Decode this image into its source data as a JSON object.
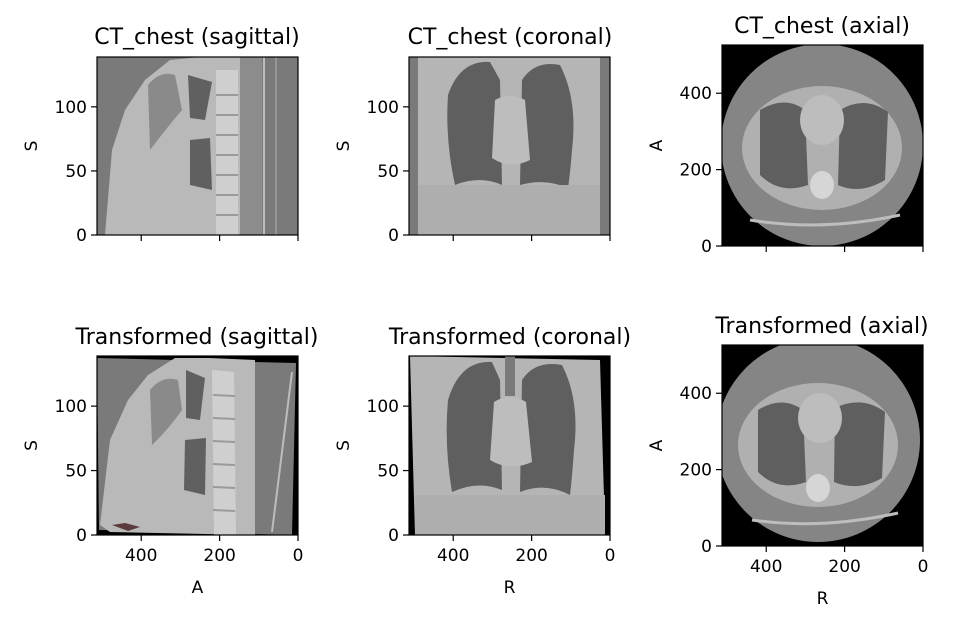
{
  "panels": [
    {
      "id": "p1",
      "title": "CT_chest (sagittal)",
      "ylabel": "S",
      "xlabel": "",
      "yticks": [
        "0",
        "50",
        "100"
      ],
      "xticks": [
        "",
        "",
        ""
      ]
    },
    {
      "id": "p2",
      "title": "CT_chest (coronal)",
      "ylabel": "S",
      "xlabel": "",
      "yticks": [
        "0",
        "50",
        "100"
      ],
      "xticks": [
        "",
        "",
        ""
      ]
    },
    {
      "id": "p3",
      "title": "CT_chest (axial)",
      "ylabel": "A",
      "xlabel": "",
      "yticks": [
        "0",
        "200",
        "400"
      ],
      "xticks": [
        "",
        "",
        ""
      ]
    },
    {
      "id": "p4",
      "title": "Transformed (sagittal)",
      "ylabel": "S",
      "xlabel": "A",
      "yticks": [
        "0",
        "50",
        "100"
      ],
      "xticks": [
        "400",
        "200",
        "0"
      ]
    },
    {
      "id": "p5",
      "title": "Transformed (coronal)",
      "ylabel": "S",
      "xlabel": "R",
      "yticks": [
        "0",
        "50",
        "100"
      ],
      "xticks": [
        "400",
        "200",
        "0"
      ]
    },
    {
      "id": "p6",
      "title": "Transformed (axial)",
      "ylabel": "A",
      "xlabel": "R",
      "yticks": [
        "0",
        "200",
        "400"
      ],
      "xticks": [
        "400",
        "200",
        "0"
      ]
    }
  ],
  "image_kind": "grayscale CT slice"
}
